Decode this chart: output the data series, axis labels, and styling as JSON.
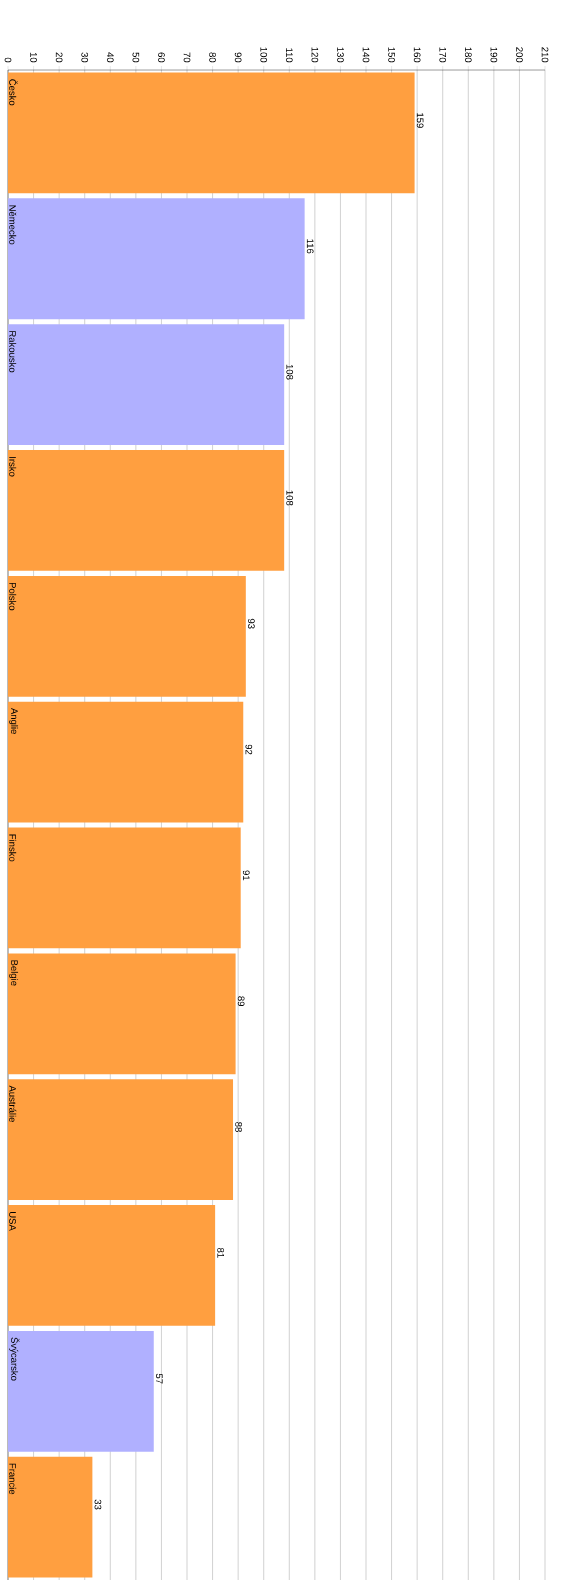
{
  "chart_data": {
    "type": "bar",
    "orientation": "horizontal",
    "categories": [
      "Česko",
      "Německo",
      "Rakousko",
      "Irsko",
      "Polsko",
      "Anglie",
      "Finsko",
      "Belgie",
      "Austrálie",
      "USA",
      "Švýcarsko",
      "Francie"
    ],
    "values": [
      159,
      116,
      108,
      108,
      93,
      92,
      91,
      89,
      88,
      81,
      57,
      33
    ],
    "colors": [
      "#ff9f40",
      "#b0b0ff",
      "#b0b0ff",
      "#ff9f40",
      "#ff9f40",
      "#ff9f40",
      "#ff9f40",
      "#ff9f40",
      "#ff9f40",
      "#ff9f40",
      "#b0b0ff",
      "#ff9f40"
    ],
    "xlim": [
      0,
      210
    ],
    "xticks": [
      0,
      10,
      20,
      30,
      40,
      50,
      60,
      70,
      80,
      90,
      100,
      110,
      120,
      130,
      140,
      150,
      160,
      170,
      180,
      190,
      200,
      210
    ],
    "grid": "x",
    "data_labels": true
  }
}
